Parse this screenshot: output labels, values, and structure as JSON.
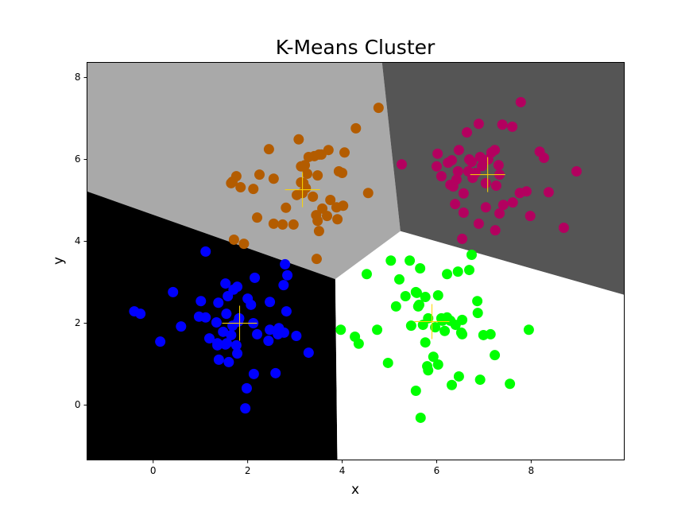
{
  "chart_data": {
    "type": "scatter",
    "title": "K-Means Cluster",
    "x_label": "x",
    "y_label": "y",
    "xlim": [
      -1.4,
      9.97
    ],
    "ylim": [
      -1.34,
      8.37
    ],
    "xticks": [
      0,
      2,
      4,
      6,
      8
    ],
    "yticks": [
      0,
      2,
      4,
      6,
      8
    ],
    "series": [
      {
        "color": "#b35c00",
        "region_color": "#a9a9a9",
        "x": [
          4.77,
          4.29,
          3.08,
          2.45,
          3.71,
          4.05,
          3.51,
          3.41,
          3.29,
          3.56,
          3.21,
          3.13,
          3.93,
          4.0,
          1.76,
          2.25,
          2.55,
          3.48,
          3.26,
          1.68,
          2.12,
          3.18,
          1.85,
          1.65,
          4.55,
          3.75,
          3.38,
          3.04,
          4.02,
          3.88,
          3.58,
          2.81,
          3.45,
          3.68,
          2.2,
          3.48,
          3.9,
          2.55,
          2.97,
          3.51,
          2.74,
          1.71,
          1.92,
          3.46,
          3.16,
          3.23,
          3.13
        ],
        "y": [
          7.26,
          6.76,
          6.49,
          6.25,
          6.23,
          6.17,
          6.12,
          6.08,
          6.06,
          6.12,
          5.86,
          5.83,
          5.71,
          5.67,
          5.59,
          5.63,
          5.53,
          5.61,
          5.65,
          5.46,
          5.28,
          5.42,
          5.32,
          5.42,
          5.18,
          5.01,
          5.09,
          5.13,
          4.87,
          4.83,
          4.8,
          4.82,
          4.64,
          4.62,
          4.58,
          4.5,
          4.54,
          4.43,
          4.41,
          4.25,
          4.41,
          4.04,
          3.94,
          3.57,
          5.18,
          5.3,
          5.44
        ]
      },
      {
        "color": "#b3005f",
        "region_color": "#555555",
        "x": [
          7.78,
          6.89,
          6.64,
          7.39,
          7.6,
          6.47,
          6.02,
          6.92,
          6.69,
          7.16,
          7.23,
          8.18,
          8.27,
          6.74,
          7.09,
          6.96,
          7.31,
          5.26,
          6.0,
          6.24,
          6.32,
          8.96,
          6.1,
          6.45,
          6.67,
          6.82,
          7.33,
          7.04,
          6.29,
          6.35,
          7.26,
          6.57,
          8.37,
          7.9,
          7.76,
          7.61,
          6.39,
          6.57,
          7.04,
          7.41,
          7.33,
          7.98,
          6.89,
          8.69,
          7.24,
          6.54,
          6.76,
          6.42
        ],
        "y": [
          7.4,
          6.87,
          6.66,
          6.85,
          6.8,
          6.23,
          6.14,
          6.06,
          6.0,
          6.17,
          6.23,
          6.19,
          6.04,
          5.94,
          6.0,
          5.84,
          5.86,
          5.88,
          5.83,
          5.92,
          5.98,
          5.71,
          5.59,
          5.71,
          5.71,
          5.67,
          5.63,
          5.42,
          5.38,
          5.34,
          5.36,
          5.17,
          5.2,
          5.22,
          5.18,
          4.95,
          4.91,
          4.7,
          4.83,
          4.89,
          4.68,
          4.62,
          4.43,
          4.33,
          4.27,
          4.06,
          5.55,
          5.51
        ]
      },
      {
        "color": "#0000ff",
        "region_color": "#000000",
        "x": [
          1.11,
          2.79,
          2.84,
          2.15,
          1.53,
          1.78,
          2.76,
          0.42,
          1.7,
          1.58,
          1.01,
          1.38,
          2.0,
          2.07,
          2.47,
          -0.4,
          -0.27,
          1.11,
          1.55,
          2.82,
          0.97,
          1.82,
          1.34,
          2.12,
          0.59,
          1.68,
          2.66,
          2.77,
          3.03,
          2.47,
          1.48,
          1.65,
          0.15,
          2.44,
          1.36,
          1.53,
          1.76,
          1.36,
          1.78,
          3.29,
          1.39,
          1.6,
          2.13,
          2.59,
          1.98,
          1.95,
          1.8,
          1.56,
          1.19,
          2.64,
          2.2
        ],
        "y": [
          3.75,
          3.44,
          3.17,
          3.11,
          2.97,
          2.89,
          2.93,
          2.76,
          2.82,
          2.66,
          2.54,
          2.5,
          2.6,
          2.45,
          2.52,
          2.29,
          2.23,
          2.14,
          2.23,
          2.29,
          2.16,
          2.12,
          2.02,
          2.0,
          1.92,
          1.94,
          1.88,
          1.77,
          1.69,
          1.84,
          1.79,
          1.71,
          1.55,
          1.57,
          1.51,
          1.48,
          1.46,
          1.46,
          1.26,
          1.28,
          1.11,
          1.05,
          0.76,
          0.78,
          0.41,
          -0.08,
          2.04,
          1.51,
          1.63,
          1.73,
          1.73
        ]
      },
      {
        "color": "#00ff00",
        "region_color": "#ffffff",
        "x": [
          6.74,
          5.43,
          5.03,
          5.65,
          6.69,
          4.52,
          6.22,
          6.45,
          5.21,
          5.34,
          5.58,
          5.56,
          5.76,
          6.03,
          6.86,
          5.14,
          5.63,
          5.61,
          6.87,
          6.22,
          5.82,
          6.54,
          6.1,
          3.97,
          4.74,
          5.46,
          5.71,
          5.97,
          6.17,
          6.4,
          6.29,
          6.52,
          6.54,
          6.99,
          7.14,
          7.95,
          4.27,
          4.35,
          5.76,
          7.23,
          5.93,
          4.97,
          5.82,
          6.03,
          5.8,
          6.47,
          6.92,
          6.32,
          7.55,
          5.56,
          5.66,
          6.12
        ],
        "y": [
          3.67,
          3.53,
          3.53,
          3.34,
          3.3,
          3.2,
          3.2,
          3.26,
          3.07,
          2.66,
          2.74,
          2.76,
          2.64,
          2.68,
          2.54,
          2.41,
          2.45,
          2.41,
          2.25,
          2.14,
          2.12,
          2.08,
          2.12,
          1.84,
          1.84,
          1.94,
          1.96,
          1.9,
          1.81,
          1.96,
          2.06,
          1.77,
          1.73,
          1.71,
          1.73,
          1.84,
          1.67,
          1.5,
          1.53,
          1.22,
          1.18,
          1.03,
          0.85,
          0.99,
          0.95,
          0.7,
          0.62,
          0.49,
          0.52,
          0.35,
          -0.31,
          2.06
        ]
      }
    ],
    "centroids": {
      "color": "#ffd700",
      "x": [
        3.16,
        7.08,
        1.83,
        5.9
      ],
      "y": [
        5.26,
        5.63,
        2.0,
        2.04
      ]
    }
  }
}
